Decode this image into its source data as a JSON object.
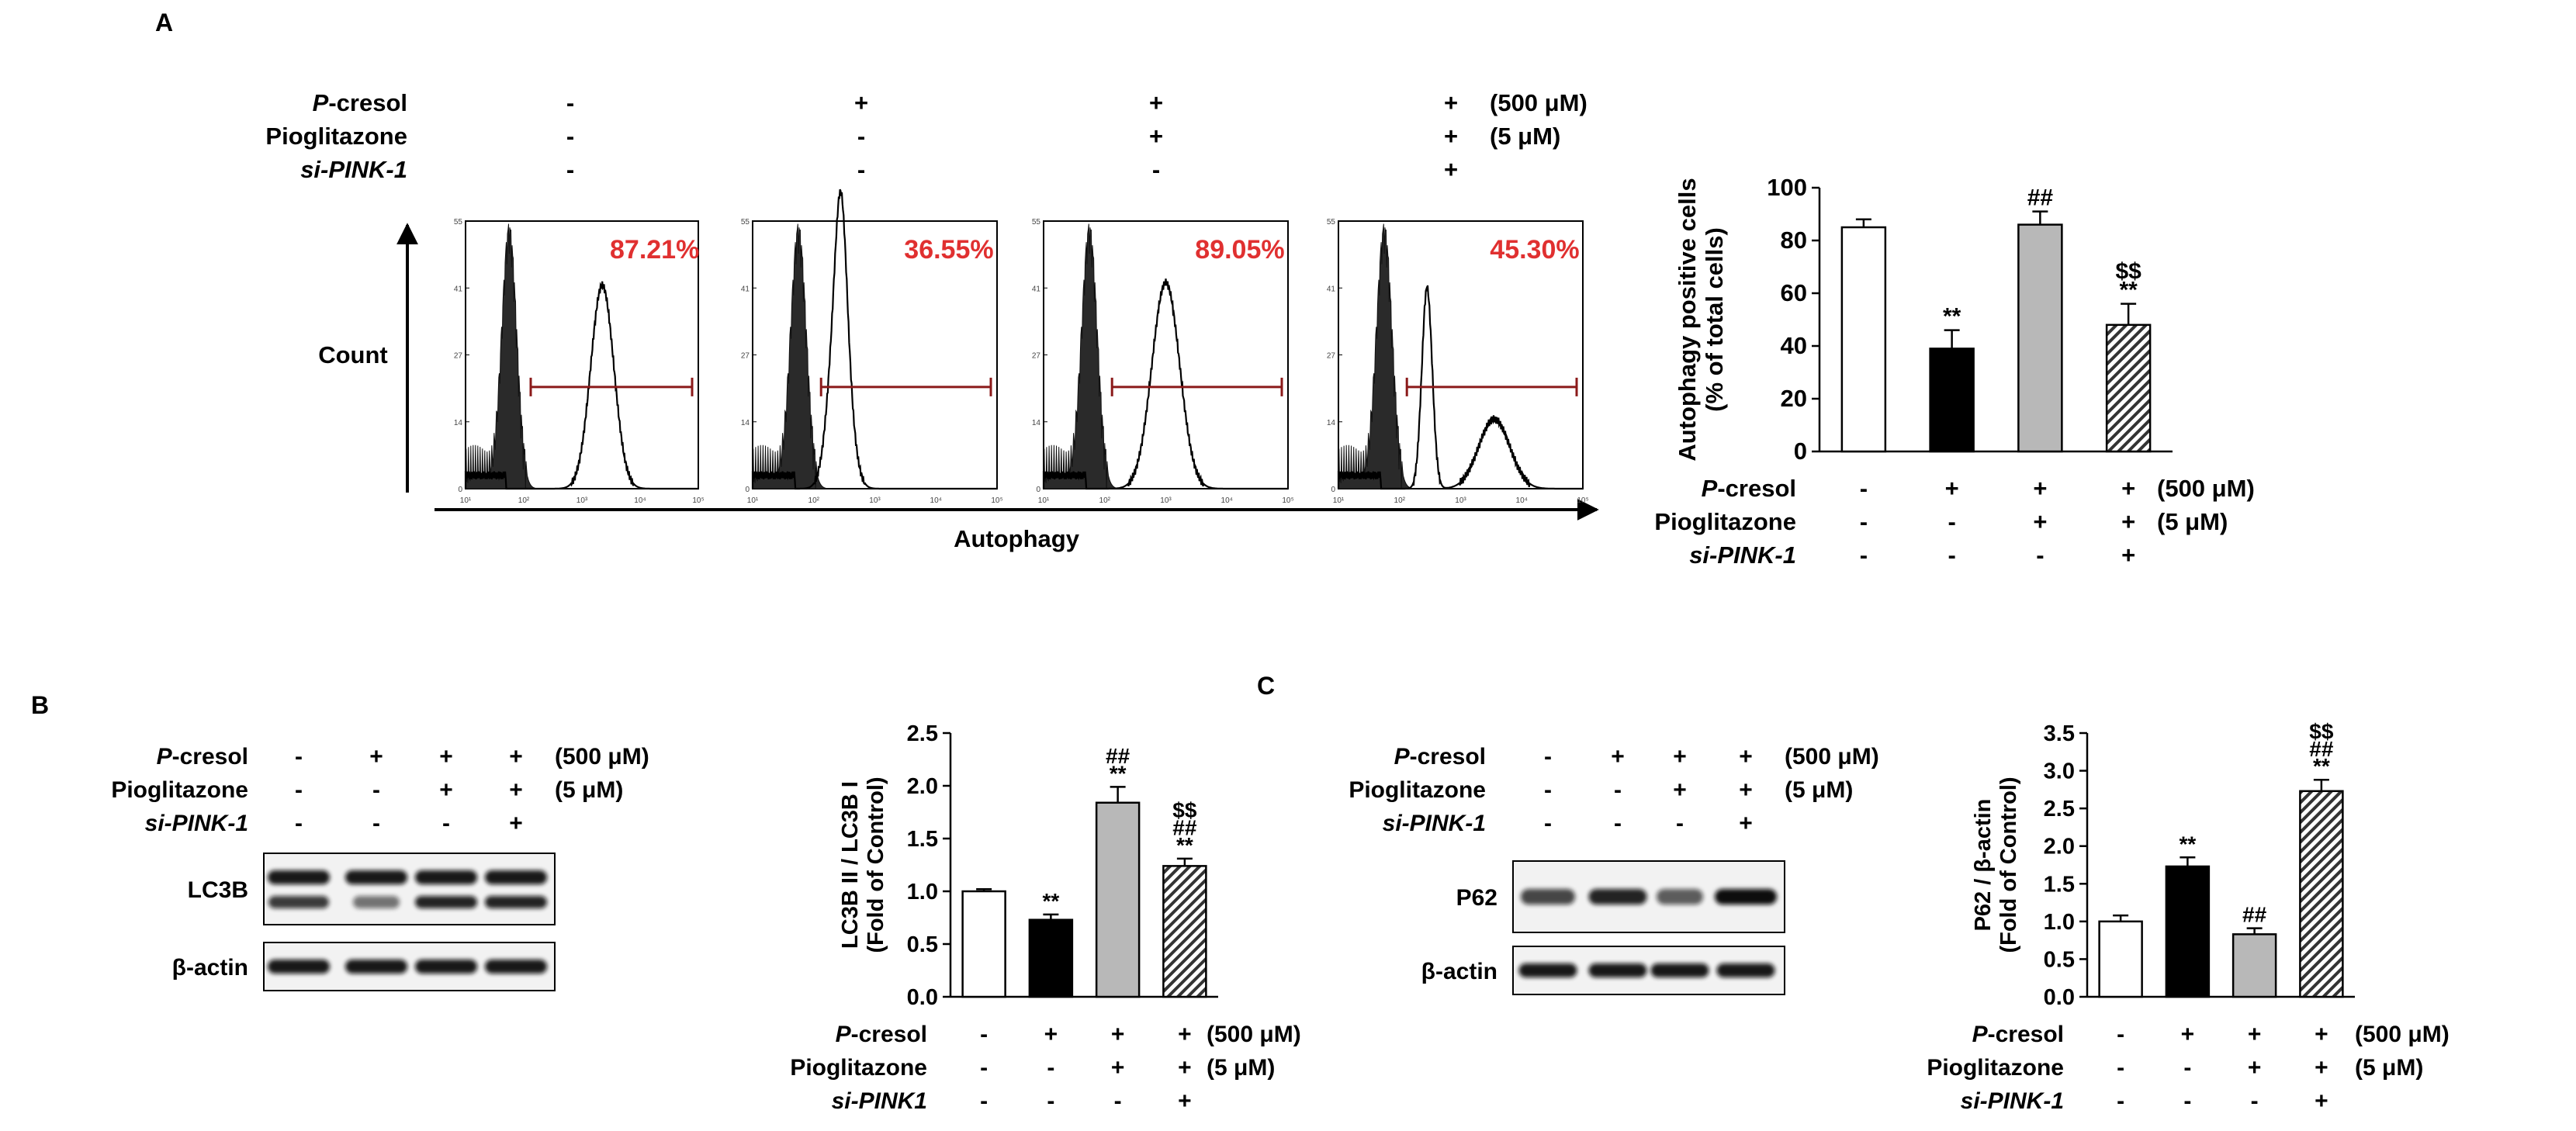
{
  "panels": {
    "a_label": "A",
    "b_label": "B",
    "c_label": "C"
  },
  "conditions": {
    "pcresol": "P-cresol",
    "pcresol_prefix": "P",
    "pcresol_suffix": "-cresol",
    "pioglitazone": "Pioglitazone",
    "sipink": "si-PINK-1",
    "sipink_alt": "si-PINK1",
    "conc_pcresol": "(500 μM)",
    "conc_pio": "(5 μM)",
    "row_pcresol": [
      "-",
      "+",
      "+",
      "+"
    ],
    "row_pio": [
      "-",
      "-",
      "+",
      "+"
    ],
    "row_sipink": [
      "-",
      "-",
      "-",
      "+"
    ]
  },
  "flow": {
    "y_label": "Count",
    "x_label": "Autophagy",
    "y_ticks": [
      "55",
      "41",
      "27",
      "14",
      "0"
    ],
    "x_ticks": [
      "10¹",
      "10²",
      "10³",
      "10⁴",
      "10⁵"
    ],
    "histograms": [
      {
        "percent": "87.21%",
        "peak_log": 3.35,
        "peak_height": 0.76,
        "width": 0.28,
        "secondary": 0
      },
      {
        "percent": "36.55%",
        "peak_log": 2.42,
        "peak_height": 0.76,
        "width": 0.22,
        "secondary": 0.12
      },
      {
        "percent": "89.05%",
        "peak_log": 3.0,
        "peak_height": 0.77,
        "width": 0.32,
        "secondary": 0
      },
      {
        "percent": "45.30%",
        "peak_log": 3.55,
        "peak_height": 0.26,
        "width": 0.36,
        "secondary": 0.25
      }
    ],
    "gate_color": "#8b1a1a",
    "percent_color": "#e03030"
  },
  "chart_data": [
    {
      "type": "bar",
      "panel": "A",
      "ylabel": "Autophagy positive cells\n(% of total cells)",
      "ylabel_line1": "Autophagy positive cells",
      "ylabel_line2": "(% of total cells)",
      "ylim": [
        0,
        100
      ],
      "yticks": [
        "0",
        "20",
        "40",
        "60",
        "80",
        "100"
      ],
      "values": [
        85,
        39,
        86,
        48
      ],
      "errors": [
        3,
        7,
        5,
        8
      ],
      "annotations": [
        [],
        [
          "**"
        ],
        [
          "##"
        ],
        [
          "$$",
          "**"
        ]
      ],
      "fills": [
        "white",
        "black",
        "gray",
        "hatch"
      ]
    },
    {
      "type": "bar",
      "panel": "B",
      "ylabel_line1": "LC3B II / LC3B I",
      "ylabel_line2": "(Fold of Control)",
      "ylim": [
        0,
        2.5
      ],
      "yticks": [
        "0.0",
        "0.5",
        "1.0",
        "1.5",
        "2.0",
        "2.5"
      ],
      "values": [
        1.0,
        0.73,
        1.84,
        1.24
      ],
      "errors": [
        0.02,
        0.05,
        0.15,
        0.07
      ],
      "annotations": [
        [],
        [
          "**"
        ],
        [
          "##",
          "**"
        ],
        [
          "$$",
          "##",
          "**"
        ]
      ],
      "fills": [
        "white",
        "black",
        "gray",
        "hatch"
      ]
    },
    {
      "type": "bar",
      "panel": "C",
      "ylabel_line1": "P62 / β-actin",
      "ylabel_line2": "(Fold of Control)",
      "ylim": [
        0,
        3.5
      ],
      "yticks": [
        "0.0",
        "0.5",
        "1.0",
        "1.5",
        "2.0",
        "2.5",
        "3.0",
        "3.5"
      ],
      "values": [
        1.0,
        1.73,
        0.83,
        2.73
      ],
      "errors": [
        0.08,
        0.12,
        0.08,
        0.15
      ],
      "annotations": [
        [],
        [
          "**"
        ],
        [
          "##"
        ],
        [
          "$$",
          "##",
          "**"
        ]
      ],
      "fills": [
        "white",
        "black",
        "gray",
        "hatch"
      ]
    }
  ],
  "blots": {
    "lc3b": "LC3B",
    "bactin": "β-actin",
    "p62": "P62"
  }
}
